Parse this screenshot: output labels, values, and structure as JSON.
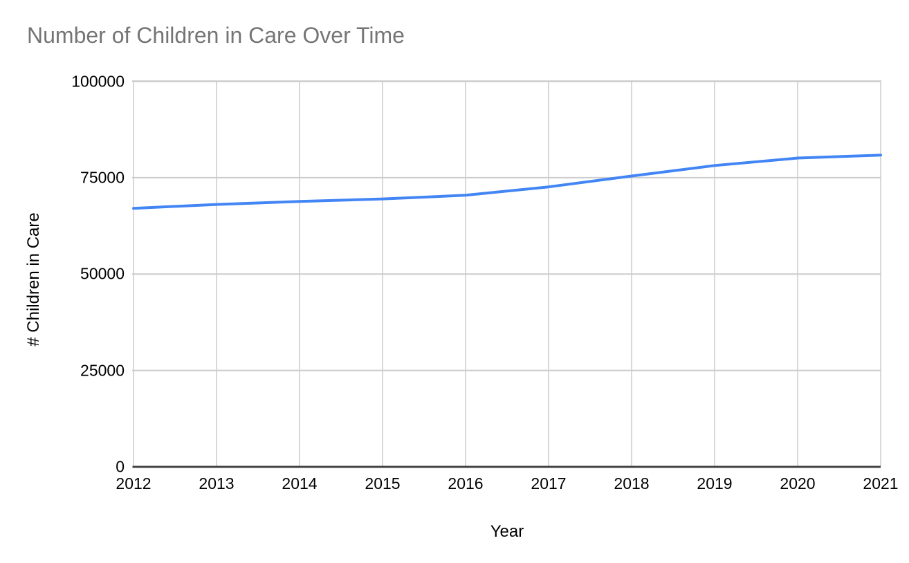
{
  "chart_data": {
    "type": "line",
    "title": "Number of Children in Care Over Time",
    "xlabel": "Year",
    "ylabel": "# Children in Care",
    "categories": [
      "2012",
      "2013",
      "2014",
      "2015",
      "2016",
      "2017",
      "2018",
      "2019",
      "2020",
      "2021"
    ],
    "values": [
      67050,
      68060,
      68840,
      69480,
      70440,
      72610,
      75420,
      78150,
      80080,
      80850
    ],
    "ylim": [
      0,
      100000
    ],
    "y_ticks": [
      0,
      25000,
      50000,
      75000,
      100000
    ],
    "x_ticks": [
      "2012",
      "2013",
      "2014",
      "2015",
      "2016",
      "2017",
      "2018",
      "2019",
      "2020",
      "2021"
    ],
    "grid": true,
    "legend": "none",
    "colors": {
      "line": "#4285f4",
      "grid": "#cccccc",
      "axis_line": "#424242",
      "title_text": "#757575",
      "tick_text": "#000000",
      "background": "#ffffff"
    }
  }
}
